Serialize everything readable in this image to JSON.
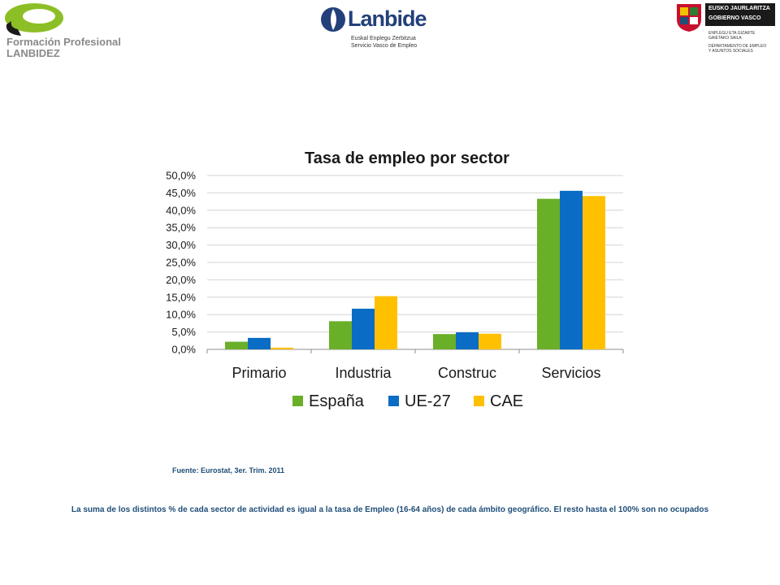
{
  "header": {
    "fp_line1": "Formación Profesional",
    "fp_line2": "LANBIDEZ",
    "lanbide_name": "Lanbide",
    "lanbide_sub1": "Euskal Enplegu Zerbitzua",
    "lanbide_sub2": "Servicio Vasco de Empleo",
    "gv_line1": "EUSKO JAURLARITZA",
    "gv_line2": "GOBIERNO VASCO",
    "gv_sub1": "ENPLEGU ETA GIZARTE",
    "gv_sub2": "GAIETAKO SAILA",
    "gv_sub3": "DEPARTAMENTO DE EMPLEO",
    "gv_sub4": "Y ASUNTOS SOCIALES"
  },
  "chart_data": {
    "type": "bar",
    "title": "Tasa de empleo por sector",
    "categories": [
      "Primario",
      "Industria",
      "Construc",
      "Servicios"
    ],
    "series": [
      {
        "name": "España",
        "color": "#6aaf28",
        "values": [
          2.2,
          8.1,
          4.4,
          43.3
        ]
      },
      {
        "name": "UE-27",
        "color": "#0a6cc4",
        "values": [
          3.3,
          11.7,
          4.9,
          45.6
        ]
      },
      {
        "name": "CAE",
        "color": "#ffc000",
        "values": [
          0.5,
          15.3,
          4.5,
          44.1
        ]
      }
    ],
    "ylim": [
      0,
      50
    ],
    "yticks": [
      "0,0%",
      "5,0%",
      "10,0%",
      "15,0%",
      "20,0%",
      "25,0%",
      "30,0%",
      "35,0%",
      "40,0%",
      "45,0%",
      "50,0%"
    ],
    "grid": true,
    "legend": "bottom"
  },
  "footer": {
    "source": "Fuente: Eurostat, 3er. Trim. 2011",
    "note": "La suma de los distintos % de cada sector de actividad es igual a la tasa de Empleo (16-64 años) de cada ámbito geográfico. El resto hasta el 100% son no ocupados"
  }
}
